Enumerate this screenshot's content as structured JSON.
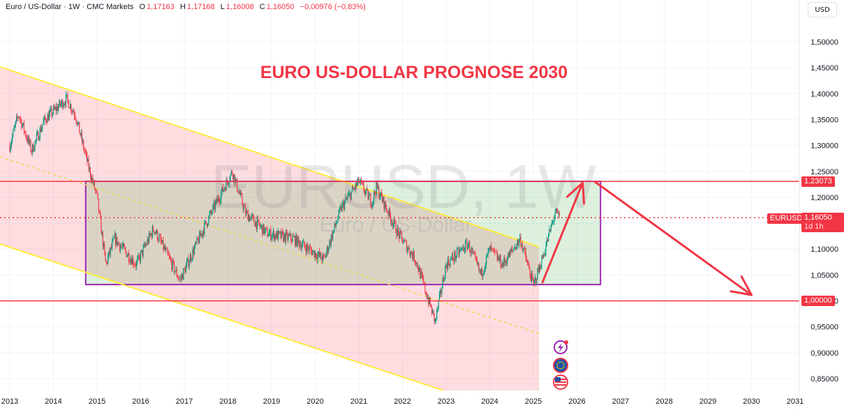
{
  "header": {
    "symbol_desc": "Euro / US-Dollar · 1W · CMC Markets",
    "open_label": "O",
    "open": "1,17163",
    "high_label": "H",
    "high": "1,17168",
    "low_label": "L",
    "low": "1,16008",
    "close_label": "C",
    "close": "1,16050",
    "change": "−0,00976 (−0,83%)"
  },
  "currency_button": "USD",
  "tags": {
    "resistance": "1,23073",
    "symbol": "EURUSD",
    "last_price": "1,16050",
    "countdown": "1d 1h",
    "support": "1,00000"
  },
  "watermark": {
    "main": "EURUSD, 1W",
    "sub": "Euro / US-Dollar"
  },
  "icons": [
    "lightning-event-icon",
    "eu-flag-icon",
    "us-flag-icon"
  ],
  "colors": {
    "up": "#089981",
    "down": "#f23645",
    "annotation": "#f23645",
    "box": "#9c27b0",
    "channel": "#ffeb3b"
  },
  "chart_data": {
    "type": "candlestick",
    "title": "EURO US-DOLLAR PROGNOSE 2030",
    "xlabel": "",
    "ylabel": "",
    "x_ticks": [
      "2013",
      "2014",
      "2015",
      "2016",
      "2017",
      "2018",
      "2019",
      "2020",
      "2021",
      "2022",
      "2023",
      "2024",
      "2025",
      "2026",
      "2027",
      "2028",
      "2029",
      "2030",
      "2031"
    ],
    "y_ticks": [
      "1,50000",
      "1,45000",
      "1,40000",
      "1,35000",
      "1,30000",
      "1,25000",
      "1,20000",
      "1,15000",
      "1,10000",
      "1,05000",
      "1,00000",
      "0,95000",
      "0,90000",
      "0,85000"
    ],
    "ylim": [
      0.815,
      1.58
    ],
    "xlim": [
      2012.78,
      2031.1
    ],
    "grid": true,
    "price_path": [
      [
        2013.0,
        1.3
      ],
      [
        2013.2,
        1.36
      ],
      [
        2013.5,
        1.29
      ],
      [
        2013.8,
        1.35
      ],
      [
        2014.3,
        1.39
      ],
      [
        2014.5,
        1.36
      ],
      [
        2014.8,
        1.26
      ],
      [
        2015.0,
        1.2
      ],
      [
        2015.2,
        1.07
      ],
      [
        2015.4,
        1.12
      ],
      [
        2015.9,
        1.07
      ],
      [
        2016.3,
        1.14
      ],
      [
        2016.9,
        1.04
      ],
      [
        2017.5,
        1.15
      ],
      [
        2018.1,
        1.25
      ],
      [
        2018.4,
        1.17
      ],
      [
        2018.9,
        1.13
      ],
      [
        2019.5,
        1.12
      ],
      [
        2020.2,
        1.08
      ],
      [
        2020.6,
        1.18
      ],
      [
        2021.0,
        1.23
      ],
      [
        2021.3,
        1.19
      ],
      [
        2021.4,
        1.22
      ],
      [
        2021.9,
        1.13
      ],
      [
        2022.3,
        1.08
      ],
      [
        2022.75,
        0.96
      ],
      [
        2023.0,
        1.07
      ],
      [
        2023.5,
        1.11
      ],
      [
        2023.8,
        1.05
      ],
      [
        2024.0,
        1.1
      ],
      [
        2024.3,
        1.07
      ],
      [
        2024.7,
        1.12
      ],
      [
        2025.0,
        1.03
      ],
      [
        2025.2,
        1.08
      ],
      [
        2025.5,
        1.17
      ],
      [
        2025.6,
        1.1605
      ]
    ],
    "levels": {
      "resistance": 1.23073,
      "last": 1.1605,
      "support": 1.0
    },
    "drawings": {
      "range_box": {
        "x": [
          2014.74,
          2026.54
        ],
        "y": [
          1.0315,
          1.2307
        ]
      },
      "channel_upper": [
        [
          2012.78,
          1.4516
        ],
        [
          2025.13,
          1.1043
        ]
      ],
      "channel_lower": [
        [
          2012.78,
          1.1097
        ],
        [
          2022.94,
          0.827
        ]
      ],
      "channel_mid": [
        [
          2012.78,
          1.278
        ],
        [
          2025.13,
          0.937
        ]
      ],
      "channel_end": 2025.13,
      "arrow_up": [
        [
          2025.21,
          1.0357
        ],
        [
          2026.13,
          1.228
        ]
      ],
      "arrow_down": [
        [
          2026.42,
          1.2293
        ],
        [
          2030.0,
          1.0114
        ]
      ]
    }
  }
}
